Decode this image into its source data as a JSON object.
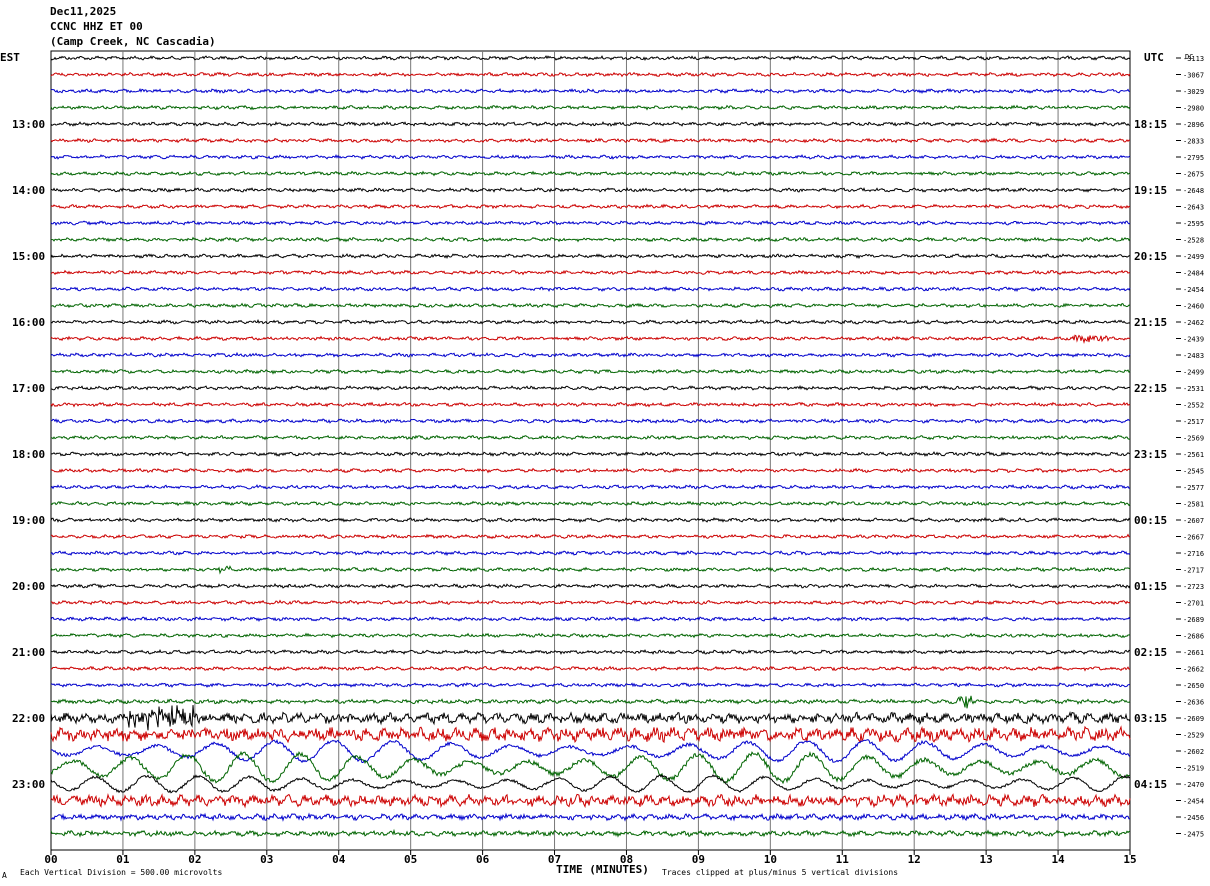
{
  "header": {
    "date": "Dec11,2025",
    "station": "CCNC HHZ ET 00",
    "location": "(Camp Creek, NC Cascadia)"
  },
  "labels": {
    "left_tz": "EST",
    "right_tz": "UTC",
    "dc": "DC",
    "xlabel": "TIME (MINUTES)",
    "scale_note": "Each Vertical Division =  500.00 microvolts",
    "clip_note": "Traces clipped at plus/minus 5 vertical divisions",
    "corner_mark": "A"
  },
  "chart_data": {
    "type": "line",
    "title": "CCNC HHZ ET 00",
    "xlabel": "TIME (MINUTES)",
    "xlim": [
      0,
      15
    ],
    "x_ticks": [
      "00",
      "01",
      "02",
      "03",
      "04",
      "05",
      "06",
      "07",
      "08",
      "09",
      "10",
      "11",
      "12",
      "13",
      "14",
      "15"
    ],
    "left_hour_labels": [
      "13:00",
      "14:00",
      "15:00",
      "16:00",
      "17:00",
      "18:00",
      "19:00",
      "20:00",
      "21:00",
      "22:00",
      "23:00"
    ],
    "right_hour_labels": [
      "18:15",
      "19:15",
      "20:15",
      "21:15",
      "22:15",
      "23:15",
      "00:15",
      "01:15",
      "02:15",
      "03:15",
      "04:15"
    ],
    "first_labeled_row": 4,
    "rows_per_hour": 4,
    "trace_colors": [
      "#000000",
      "#cc0000",
      "#0000cc",
      "#006400"
    ],
    "dc_offsets": [
      "-3113",
      "-3067",
      "-3029",
      "-2980",
      "-2896",
      "-2833",
      "-2795",
      "-2675",
      "-2648",
      "-2643",
      "-2595",
      "-2528",
      "-2499",
      "-2484",
      "-2454",
      "-2460",
      "-2462",
      "-2439",
      "-2483",
      "-2499",
      "-2531",
      "-2552",
      "-2517",
      "-2569",
      "-2561",
      "-2545",
      "-2577",
      "-2581",
      "-2607",
      "-2667",
      "-2716",
      "-2717",
      "-2723",
      "-2701",
      "-2689",
      "-2686",
      "-2661",
      "-2662",
      "-2650",
      "-2636",
      "-2609",
      "-2529",
      "-2602",
      "-2519",
      "-2470",
      "-2454",
      "-2456",
      "-2475"
    ],
    "row_amplitude_divisions": [
      0.3,
      0.3,
      0.3,
      0.3,
      0.3,
      0.3,
      0.3,
      0.3,
      0.3,
      0.3,
      0.3,
      0.3,
      0.3,
      0.3,
      0.3,
      0.3,
      0.3,
      0.3,
      0.3,
      0.3,
      0.3,
      0.3,
      0.3,
      0.3,
      0.3,
      0.3,
      0.3,
      0.3,
      0.3,
      0.3,
      0.3,
      0.3,
      0.3,
      0.3,
      0.3,
      0.3,
      0.3,
      0.3,
      0.3,
      0.35,
      0.9,
      1.2,
      2.6,
      3.5,
      2.0,
      1.0,
      0.5,
      0.45
    ],
    "events": [
      {
        "row": 17,
        "minute_start": 14.2,
        "minute_end": 14.7,
        "amplitude_divisions": 0.7
      },
      {
        "row": 31,
        "minute_start": 2.3,
        "minute_end": 2.5,
        "amplitude_divisions": 0.5
      },
      {
        "row": 39,
        "minute_start": 12.6,
        "minute_end": 12.8,
        "amplitude_divisions": 1.6
      },
      {
        "row": 40,
        "minute_start": 1.0,
        "minute_end": 2.0,
        "amplitude_divisions": 2.2
      }
    ]
  }
}
